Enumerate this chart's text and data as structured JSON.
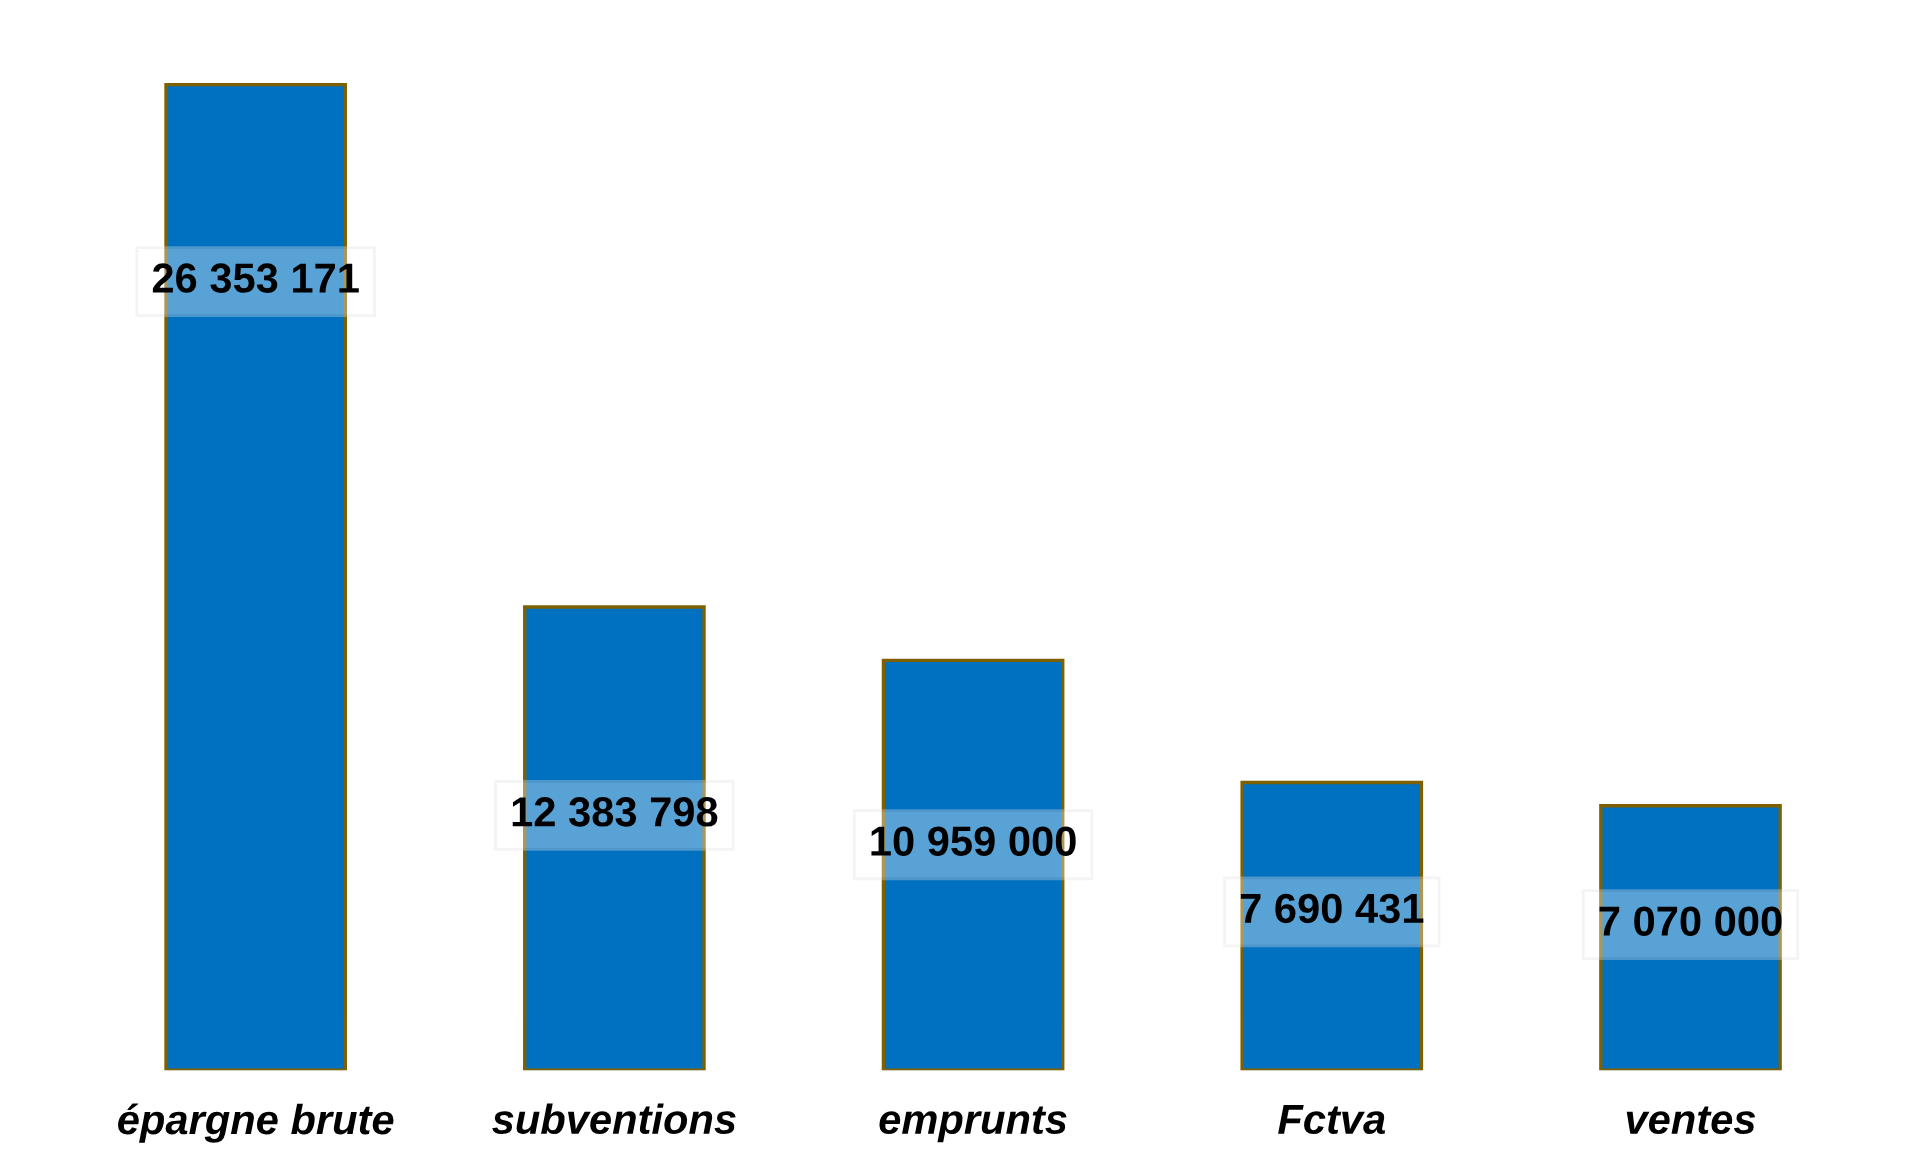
{
  "chart_data": {
    "type": "bar",
    "categories": [
      "épargne brute",
      "subventions",
      "emprunts",
      "Fctva",
      "ventes"
    ],
    "values": [
      26353171,
      12383798,
      10959000,
      7690431,
      7070000
    ],
    "value_labels": [
      "26 353 171",
      "12 383 798",
      "10 959 000",
      "7 690 431",
      "7 070 000"
    ],
    "color": "#0070c0",
    "grid": false,
    "legend": false
  }
}
